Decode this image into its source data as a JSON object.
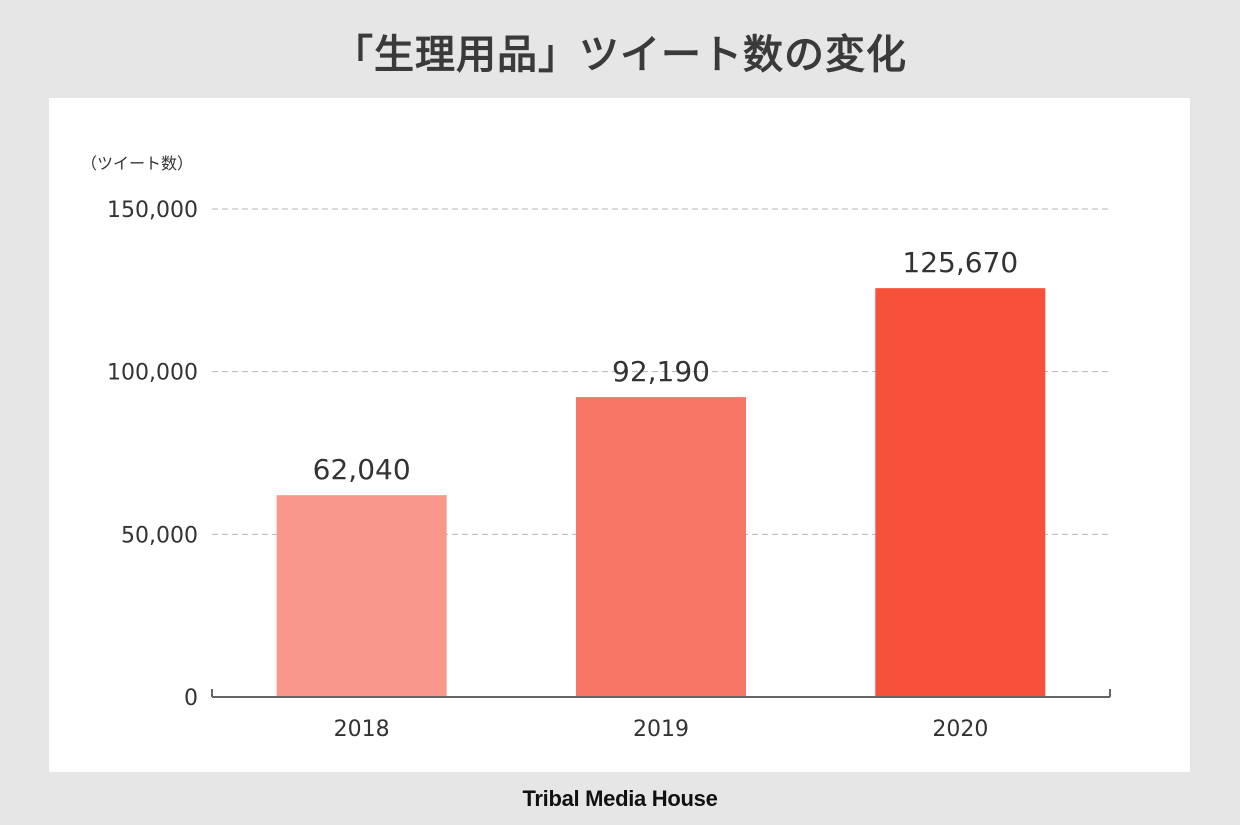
{
  "page": {
    "title": "「生理用品」ツイート数の変化",
    "footer": "Tribal Media House"
  },
  "chart_data": {
    "type": "bar",
    "title": "「生理用品」ツイート数の変化",
    "ylabel": "（ツイート数）",
    "xlabel": "",
    "categories": [
      "2018",
      "2019",
      "2020"
    ],
    "values": [
      62040,
      92190,
      125670
    ],
    "value_labels": [
      "62,040",
      "92,190",
      "125,670"
    ],
    "ylim": [
      0,
      150000
    ],
    "yticks": [
      0,
      50000,
      100000,
      150000
    ],
    "ytick_labels": [
      "0",
      "50,000",
      "100,000",
      "150,000"
    ],
    "grid": true,
    "grid_style": "dashed",
    "bar_colors": [
      "#fa978b",
      "#f87665",
      "#f8513b"
    ]
  }
}
